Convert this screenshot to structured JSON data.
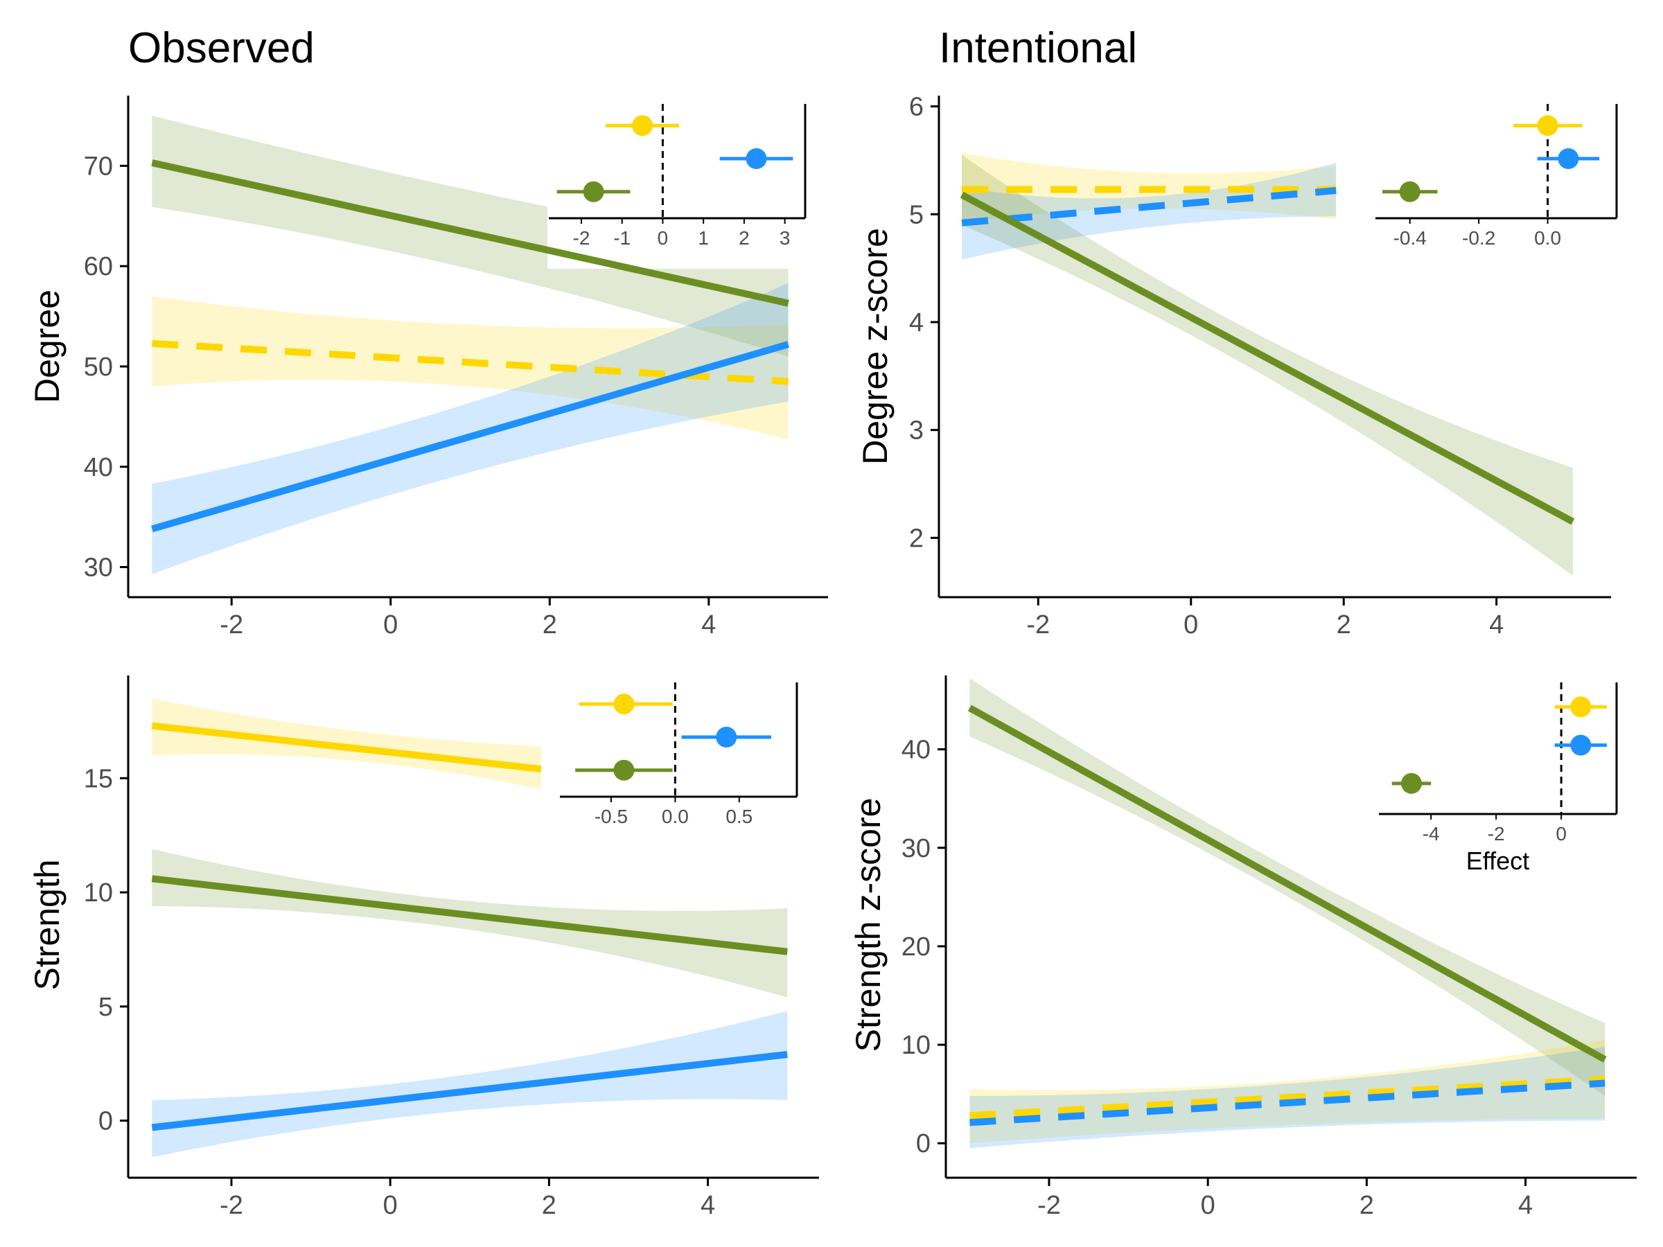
{
  "colors": {
    "green": "#6B8E23",
    "yellow": "#FFD700",
    "blue": "#1E90FF",
    "axis": "#000000",
    "tick_text": "#4D4D4D"
  },
  "chart_data": [
    {
      "id": "observed-degree",
      "type": "line",
      "title": "Observed",
      "xlabel": "",
      "ylabel": "Degree",
      "xlim": [
        -3.3,
        5.5
      ],
      "ylim": [
        27,
        77
      ],
      "x_ticks": [
        -2,
        0,
        2,
        4
      ],
      "x_tick_labels": [
        "-2",
        "0",
        "2",
        "4"
      ],
      "y_ticks": [
        30,
        40,
        50,
        60,
        70
      ],
      "y_tick_labels": [
        "30",
        "40",
        "50",
        "60",
        "70"
      ],
      "grid": false,
      "series": [
        {
          "color": "#6B8E23",
          "dashed": false,
          "x": [
            -3,
            5
          ],
          "y": [
            70.3,
            56.3
          ],
          "ci_x": [
            -3,
            0,
            5
          ],
          "ci_lower": [
            65.9,
            61.5,
            51.0
          ],
          "ci_upper": [
            75.0,
            69.3,
            61.3
          ]
        },
        {
          "color": "#FFD700",
          "dashed": true,
          "x": [
            -3,
            5
          ],
          "y": [
            52.3,
            48.5
          ],
          "ci_x": [
            -3,
            0,
            5
          ],
          "ci_lower": [
            48.0,
            48.5,
            42.7
          ],
          "ci_upper": [
            57.0,
            54.6,
            54.2
          ]
        },
        {
          "color": "#1E90FF",
          "dashed": false,
          "x": [
            -3,
            5
          ],
          "y": [
            33.8,
            52.2
          ],
          "ci_x": [
            -3,
            0,
            5
          ],
          "ci_lower": [
            29.3,
            37.2,
            46.5
          ],
          "ci_upper": [
            38.3,
            44.0,
            58.3
          ]
        }
      ],
      "inset": {
        "type": "dot-interval",
        "xlabel": "",
        "xlim": [
          -2.8,
          3.5
        ],
        "x_ticks": [
          -2,
          -1,
          0,
          1,
          2,
          3
        ],
        "x_tick_labels": [
          "-2",
          "-1",
          "0",
          "1",
          "2",
          "3"
        ],
        "reference_line": 0,
        "effects": [
          {
            "color": "#FFD700",
            "estimate": -0.5,
            "lower": -1.4,
            "upper": 0.4
          },
          {
            "color": "#1E90FF",
            "estimate": 2.3,
            "lower": 1.4,
            "upper": 3.2
          },
          {
            "color": "#6B8E23",
            "estimate": -1.7,
            "lower": -2.6,
            "upper": -0.8
          }
        ]
      }
    },
    {
      "id": "intentional-degree",
      "type": "line",
      "title": "Intentional",
      "xlabel": "",
      "ylabel": "Degree z-score",
      "xlim": [
        -3.3,
        5.5
      ],
      "ylim": [
        1.45,
        6.1
      ],
      "x_ticks": [
        -2,
        0,
        2,
        4
      ],
      "x_tick_labels": [
        "-2",
        "0",
        "2",
        "4"
      ],
      "y_ticks": [
        2,
        3,
        4,
        5,
        6
      ],
      "y_tick_labels": [
        "2",
        "3",
        "4",
        "5",
        "6"
      ],
      "grid": false,
      "series": [
        {
          "color": "#FFD700",
          "dashed": true,
          "x": [
            -3,
            1.9
          ],
          "y": [
            5.23,
            5.23
          ],
          "ci_x": [
            -3,
            0,
            1.9
          ],
          "ci_lower": [
            4.92,
            5.05,
            4.95
          ],
          "ci_upper": [
            5.57,
            5.38,
            5.45
          ]
        },
        {
          "color": "#1E90FF",
          "dashed": true,
          "x": [
            -3,
            1.9
          ],
          "y": [
            4.92,
            5.22
          ],
          "ci_x": [
            -3,
            0,
            1.9
          ],
          "ci_lower": [
            4.58,
            4.92,
            4.98
          ],
          "ci_upper": [
            5.25,
            5.2,
            5.48
          ]
        },
        {
          "color": "#6B8E23",
          "dashed": false,
          "x": [
            -3,
            5
          ],
          "y": [
            5.18,
            2.15
          ],
          "ci_x": [
            -3,
            0,
            5
          ],
          "ci_lower": [
            4.9,
            3.88,
            1.65
          ],
          "ci_upper": [
            5.55,
            4.22,
            2.65
          ]
        }
      ],
      "inset": {
        "type": "dot-interval",
        "xlabel": "",
        "xlim": [
          -0.5,
          0.2
        ],
        "x_ticks": [
          -0.4,
          -0.2,
          0
        ],
        "x_tick_labels": [
          "-0.4",
          "-0.2",
          "0.0"
        ],
        "reference_line": 0,
        "effects": [
          {
            "color": "#FFD700",
            "estimate": 0.0,
            "lower": -0.1,
            "upper": 0.1
          },
          {
            "color": "#1E90FF",
            "estimate": 0.06,
            "lower": -0.03,
            "upper": 0.15
          },
          {
            "color": "#6B8E23",
            "estimate": -0.4,
            "lower": -0.48,
            "upper": -0.32
          }
        ]
      }
    },
    {
      "id": "observed-strength",
      "type": "line",
      "title": "",
      "xlabel": "",
      "ylabel": "Strength",
      "xlim": [
        -3.3,
        5.4
      ],
      "ylim": [
        -2.5,
        19.5
      ],
      "x_ticks": [
        -2,
        0,
        2,
        4
      ],
      "x_tick_labels": [
        "-2",
        "0",
        "2",
        "4"
      ],
      "y_ticks": [
        0,
        5,
        10,
        15
      ],
      "y_tick_labels": [
        "0",
        "5",
        "10",
        "15"
      ],
      "grid": false,
      "series": [
        {
          "color": "#FFD700",
          "dashed": false,
          "x": [
            -3,
            1.9
          ],
          "y": [
            17.3,
            15.4
          ],
          "ci_x": [
            -3,
            0,
            1.9
          ],
          "ci_lower": [
            16.0,
            15.6,
            14.5
          ],
          "ci_upper": [
            18.5,
            16.9,
            16.4
          ]
        },
        {
          "color": "#6B8E23",
          "dashed": false,
          "x": [
            -3,
            5
          ],
          "y": [
            10.6,
            7.4
          ],
          "ci_x": [
            -3,
            0,
            5
          ],
          "ci_lower": [
            9.4,
            8.8,
            5.4
          ],
          "ci_upper": [
            11.9,
            10.0,
            9.3
          ]
        },
        {
          "color": "#1E90FF",
          "dashed": false,
          "x": [
            -3,
            5
          ],
          "y": [
            -0.3,
            2.9
          ],
          "ci_x": [
            -3,
            0,
            5
          ],
          "ci_lower": [
            -1.6,
            0.1,
            0.9
          ],
          "ci_upper": [
            0.9,
            1.6,
            4.8
          ]
        }
      ],
      "inset": {
        "type": "dot-interval",
        "xlabel": "",
        "xlim": [
          -0.9,
          0.95
        ],
        "x_ticks": [
          -0.5,
          0,
          0.5
        ],
        "x_tick_labels": [
          "-0.5",
          "0.0",
          "0.5"
        ],
        "reference_line": 0,
        "effects": [
          {
            "color": "#FFD700",
            "estimate": -0.4,
            "lower": -0.75,
            "upper": -0.02
          },
          {
            "color": "#1E90FF",
            "estimate": 0.4,
            "lower": 0.05,
            "upper": 0.75
          },
          {
            "color": "#6B8E23",
            "estimate": -0.4,
            "lower": -0.78,
            "upper": -0.02
          }
        ]
      }
    },
    {
      "id": "intentional-strength",
      "type": "line",
      "title": "",
      "xlabel": "",
      "ylabel": "Strength z-score",
      "xlim": [
        -3.3,
        5.4
      ],
      "ylim": [
        -3.5,
        47.5
      ],
      "x_ticks": [
        -2,
        0,
        2,
        4
      ],
      "x_tick_labels": [
        "-2",
        "0",
        "2",
        "4"
      ],
      "y_ticks": [
        0,
        10,
        20,
        30,
        40
      ],
      "y_tick_labels": [
        "0",
        "10",
        "20",
        "30",
        "40"
      ],
      "grid": false,
      "series": [
        {
          "color": "#6B8E23",
          "dashed": false,
          "x": [
            -3,
            5
          ],
          "y": [
            44.2,
            8.5
          ],
          "ci_x": [
            -3,
            0,
            5
          ],
          "ci_lower": [
            41.3,
            29.5,
            4.8
          ],
          "ci_upper": [
            47.2,
            32.5,
            12.2
          ]
        },
        {
          "color": "#FFD700",
          "dashed": true,
          "x": [
            -3,
            5
          ],
          "y": [
            2.8,
            6.5
          ],
          "ci_x": [
            -3,
            0,
            5
          ],
          "ci_lower": [
            0.0,
            1.5,
            2.5
          ],
          "ci_upper": [
            5.5,
            5.8,
            10.5
          ]
        },
        {
          "color": "#1E90FF",
          "dashed": true,
          "x": [
            -3,
            5
          ],
          "y": [
            2.1,
            6.1
          ],
          "ci_x": [
            -3,
            0,
            5
          ],
          "ci_lower": [
            -0.5,
            1.2,
            2.3
          ],
          "ci_upper": [
            4.8,
            5.5,
            9.8
          ]
        }
      ],
      "inset": {
        "type": "dot-interval",
        "xlabel": "Effect",
        "xlim": [
          -5.6,
          1.7
        ],
        "x_ticks": [
          -4,
          -2,
          0
        ],
        "x_tick_labels": [
          "-4",
          "-2",
          "0"
        ],
        "reference_line": 0,
        "effects": [
          {
            "color": "#FFD700",
            "estimate": 0.6,
            "lower": -0.2,
            "upper": 1.4
          },
          {
            "color": "#1E90FF",
            "estimate": 0.6,
            "lower": -0.2,
            "upper": 1.4
          },
          {
            "color": "#6B8E23",
            "estimate": -4.6,
            "lower": -5.2,
            "upper": -4.0
          }
        ]
      }
    }
  ]
}
